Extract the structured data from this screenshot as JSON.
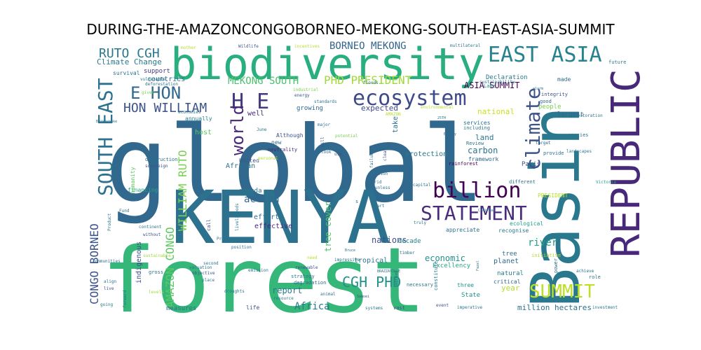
{
  "chart_data": {
    "type": "wordcloud",
    "title": "DURING-THE-AMAZONCONGOBORNEO-MEKONG-SOUTH-EAST-ASIA-SUMMIT",
    "background": "#ffffff",
    "colormap": "viridis",
    "words": [
      {
        "text": "global",
        "color": "#31688e"
      },
      {
        "text": "forest",
        "color": "#35b779"
      },
      {
        "text": "Basin",
        "color": "#2a788e"
      },
      {
        "text": "KENYA",
        "color": "#2c728e"
      },
      {
        "text": "biodiversity",
        "color": "#29af7f"
      },
      {
        "text": "REPUBLIC",
        "color": "#482878"
      },
      {
        "text": "ecosystem",
        "color": "#3e4a89"
      },
      {
        "text": "EAST ASIA",
        "color": "#26828e"
      },
      {
        "text": "SOUTH EAST",
        "color": "#2c728e"
      },
      {
        "text": "billion",
        "color": "#440154"
      },
      {
        "text": "STATEMENT",
        "color": "#472d7b"
      },
      {
        "text": "climate",
        "color": "#3b528b"
      },
      {
        "text": "SUMMIT",
        "color": "#bddf26"
      },
      {
        "text": "H E",
        "color": "#443983"
      },
      {
        "text": "E HON",
        "color": "#31688e"
      },
      {
        "text": "world",
        "color": "#482878"
      },
      {
        "text": "CGH PHD",
        "color": "#21918c"
      },
      {
        "text": "HON WILLIAM",
        "color": "#3b528b"
      },
      {
        "text": "RUTO CGH",
        "color": "#2a788e"
      },
      {
        "text": "PHD PRESIDENT",
        "color": "#a0da39"
      },
      {
        "text": "AMAZON CONGO",
        "color": "#5ec962"
      },
      {
        "text": "CONGO BORNEO",
        "color": "#3b528b"
      },
      {
        "text": "WILLIAM RUTO",
        "color": "#7ad151"
      },
      {
        "text": "MEKONG SOUTH",
        "color": "#4ac16d"
      },
      {
        "text": "BORNEO MEKONG",
        "color": "#33638d"
      },
      {
        "text": "ASIA SUMMIT",
        "color": "#440154"
      },
      {
        "text": "Climate Change",
        "color": "#2a788e"
      },
      {
        "text": "river",
        "color": "#1fa187"
      },
      {
        "text": "carbon",
        "color": "#2c728e"
      },
      {
        "text": "action",
        "color": "#31688e"
      },
      {
        "text": "Africa",
        "color": "#2a788e"
      },
      {
        "text": "tree cover",
        "color": "#52c569"
      },
      {
        "text": "million hectares",
        "color": "#2c728e"
      },
      {
        "text": "economic",
        "color": "#21918c"
      },
      {
        "text": "nations",
        "color": "#3b528b"
      },
      {
        "text": "report",
        "color": "#2a788e"
      },
      {
        "text": "national",
        "color": "#cde11d"
      },
      {
        "text": "expected",
        "color": "#3e4a89"
      },
      {
        "text": "countries",
        "color": "#2c728e"
      },
      {
        "text": "support",
        "color": "#443983"
      },
      {
        "text": "Declaration",
        "color": "#2a788e"
      },
      {
        "text": "land",
        "color": "#2a788e"
      },
      {
        "text": "Paris",
        "color": "#3b528b"
      },
      {
        "text": "year",
        "color": "#b5de2b"
      },
      {
        "text": "protection",
        "color": "#2a788e"
      },
      {
        "text": "framework",
        "color": "#31688e"
      },
      {
        "text": "efforts",
        "color": "#2c728e"
      },
      {
        "text": "effective",
        "color": "#482878"
      },
      {
        "text": "planet",
        "color": "#31688e"
      },
      {
        "text": "natural",
        "color": "#2a788e"
      },
      {
        "text": "State",
        "color": "#21918c"
      },
      {
        "text": "Excellency",
        "color": "#22a884"
      },
      {
        "text": "largest",
        "color": "#31688e"
      },
      {
        "text": "people",
        "color": "#7ad151"
      },
      {
        "text": "well",
        "color": "#482878"
      },
      {
        "text": "growing",
        "color": "#31688e"
      },
      {
        "text": "services",
        "color": "#2c728e"
      },
      {
        "text": "tropical",
        "color": "#2a788e"
      },
      {
        "text": "decade",
        "color": "#26828e"
      },
      {
        "text": "agenda",
        "color": "#2c728e"
      },
      {
        "text": "United",
        "color": "#3b528b"
      },
      {
        "text": "African",
        "color": "#2c728e"
      },
      {
        "text": "host",
        "color": "#5ec962"
      },
      {
        "text": "annually",
        "color": "#26828e"
      },
      {
        "text": "financing",
        "color": "#22a884"
      },
      {
        "text": "indigenous",
        "color": "#3e4a89"
      },
      {
        "text": "measures",
        "color": "#2c728e"
      },
      {
        "text": "life",
        "color": "#3b528b"
      },
      {
        "text": "three",
        "color": "#21918c"
      },
      {
        "text": "critical",
        "color": "#31688e"
      },
      {
        "text": "made",
        "color": "#31688e"
      },
      {
        "text": "PRESIDENT",
        "color": "#b5de2b"
      },
      {
        "text": "tree",
        "color": "#2c728e"
      },
      {
        "text": "recognise",
        "color": "#2a788e"
      },
      {
        "text": "ecological",
        "color": "#1f9e89"
      },
      {
        "text": "appreciate",
        "color": "#2c728e"
      },
      {
        "text": "rainforest",
        "color": "#440154"
      },
      {
        "text": "take",
        "color": "#2c728e"
      },
      {
        "text": "humanity",
        "color": "#5ec962"
      },
      {
        "text": "survival",
        "color": "#2c728e"
      },
      {
        "text": "destruction",
        "color": "#2c728e"
      },
      {
        "text": "Although",
        "color": "#3b528b"
      },
      {
        "text": "new",
        "color": "#31688e"
      },
      {
        "text": "neutrality",
        "color": "#482878"
      },
      {
        "text": "including",
        "color": "#2a788e"
      },
      {
        "text": "Review",
        "color": "#2c728e"
      },
      {
        "text": "good",
        "color": "#31688e"
      },
      {
        "text": "different",
        "color": "#2c728e"
      },
      {
        "text": "Lake",
        "color": "#21918c"
      },
      {
        "text": "initiative",
        "color": "#b5de2b"
      },
      {
        "text": "species",
        "color": "#2a788e"
      },
      {
        "text": "Restoration",
        "color": "#2c728e"
      },
      {
        "text": "future",
        "color": "#2a788e"
      },
      {
        "text": "integrity",
        "color": "#3b528b"
      },
      {
        "text": "landscapes",
        "color": "#2a788e"
      },
      {
        "text": "Victoria",
        "color": "#1f9e89"
      },
      {
        "text": "provide",
        "color": "#2c728e"
      },
      {
        "text": "target",
        "color": "#31688e"
      },
      {
        "text": "power",
        "color": "#2c728e"
      },
      {
        "text": "achieve",
        "color": "#2c728e"
      },
      {
        "text": "role",
        "color": "#2c728e"
      },
      {
        "text": "investment",
        "color": "#2a788e"
      },
      {
        "text": "imperative",
        "color": "#2c728e"
      },
      {
        "text": "event",
        "color": "#3b528b"
      },
      {
        "text": "constitute",
        "color": "#2a788e"
      },
      {
        "text": "necessary",
        "color": "#2c728e"
      },
      {
        "text": "vast",
        "color": "#3b528b"
      },
      {
        "text": "systems",
        "color": "#2a788e"
      },
      {
        "text": "timber",
        "color": "#2c728e"
      },
      {
        "text": "truly",
        "color": "#2c728e"
      },
      {
        "text": "capital",
        "color": "#2c728e"
      },
      {
        "text": "part",
        "color": "#2a788e"
      },
      {
        "text": "Loss",
        "color": "#31688e"
      },
      {
        "text": "strategy",
        "color": "#2c728e"
      },
      {
        "text": "degradation",
        "color": "#31688e"
      },
      {
        "text": "resource",
        "color": "#2a788e"
      },
      {
        "text": "emission",
        "color": "#2c728e"
      },
      {
        "text": "renewable",
        "color": "#3b528b"
      },
      {
        "text": "impressive",
        "color": "#2c728e"
      },
      {
        "text": "position",
        "color": "#2c728e"
      },
      {
        "text": "Programme",
        "color": "#2c728e"
      },
      {
        "text": "call",
        "color": "#3b528b"
      },
      {
        "text": "livelihoods",
        "color": "#2a788e"
      },
      {
        "text": "second",
        "color": "#2c728e"
      },
      {
        "text": "valuation",
        "color": "#2c728e"
      },
      {
        "text": "objective",
        "color": "#3b528b"
      },
      {
        "text": "place",
        "color": "#2a788e"
      },
      {
        "text": "droughts",
        "color": "#2c728e"
      },
      {
        "text": "gross",
        "color": "#2c728e"
      },
      {
        "text": "levels",
        "color": "#a0da39"
      },
      {
        "text": "align",
        "color": "#2c728e"
      },
      {
        "text": "live",
        "color": "#3b528b"
      },
      {
        "text": "going",
        "color": "#2a788e"
      },
      {
        "text": "forward",
        "color": "#2c728e"
      },
      {
        "text": "communities",
        "color": "#2c728e"
      },
      {
        "text": "continent",
        "color": "#2a788e"
      },
      {
        "text": "without",
        "color": "#3b528b"
      },
      {
        "text": "sustainable",
        "color": "#a0da39"
      },
      {
        "text": "Fund",
        "color": "#2c728e"
      },
      {
        "text": "Product",
        "color": "#2c728e"
      },
      {
        "text": "sovereign",
        "color": "#3b528b"
      },
      {
        "text": "economies",
        "color": "#2a788e"
      },
      {
        "text": "vulnerable",
        "color": "#2c728e"
      },
      {
        "text": "given",
        "color": "#7ad151"
      },
      {
        "text": "deforestation",
        "color": "#2c728e"
      },
      {
        "text": "Wildlife",
        "color": "#3b528b"
      },
      {
        "text": "floods",
        "color": "#2c728e"
      },
      {
        "text": "sustainability",
        "color": "#2a788e"
      },
      {
        "text": "multilateral",
        "color": "#2c728e"
      },
      {
        "text": "standards",
        "color": "#2c728e"
      },
      {
        "text": "industrial",
        "color": "#7ad151"
      },
      {
        "text": "energy",
        "color": "#3b528b"
      },
      {
        "text": "major",
        "color": "#2c728e"
      },
      {
        "text": "potential",
        "color": "#7ad151"
      },
      {
        "text": "Nile",
        "color": "#2c728e"
      },
      {
        "text": "use",
        "color": "#3b528b"
      },
      {
        "text": "failure",
        "color": "#2c728e"
      },
      {
        "text": "million",
        "color": "#2c728e"
      },
      {
        "text": "arid",
        "color": "#2c728e"
      },
      {
        "text": "clear",
        "color": "#3b528b"
      },
      {
        "text": "look",
        "color": "#2c728e"
      },
      {
        "text": "will",
        "color": "#3b528b"
      },
      {
        "text": "personal",
        "color": "#b5de2b"
      },
      {
        "text": "unless",
        "color": "#2c728e"
      },
      {
        "text": "agreed",
        "color": "#2c728e"
      },
      {
        "text": "need",
        "color": "#b5de2b"
      },
      {
        "text": "animal",
        "color": "#2c728e"
      },
      {
        "text": "s",
        "color": "#2c728e"
      },
      {
        "text": "June",
        "color": "#2c728e"
      },
      {
        "text": "AMAZON",
        "color": "#b5de2b"
      },
      {
        "text": "environmental",
        "color": "#b5de2b"
      },
      {
        "text": "BRAZZAVILLE",
        "color": "#2c728e"
      },
      {
        "text": "Samoei",
        "color": "#3b528b"
      },
      {
        "text": "Bruce",
        "color": "#2c728e"
      },
      {
        "text": "Fazel",
        "color": "#2c728e"
      },
      {
        "text": "Bhikhshake",
        "color": "#2c728e"
      },
      {
        "text": "Chairman",
        "color": "#2c728e"
      },
      {
        "text": "Energy",
        "color": "#2c728e"
      },
      {
        "text": "alarm",
        "color": "#2c728e"
      },
      {
        "text": "25TH",
        "color": "#2c728e"
      },
      {
        "text": "mother",
        "color": "#b5de2b"
      },
      {
        "text": "incentives",
        "color": "#b5de2b"
      }
    ]
  }
}
